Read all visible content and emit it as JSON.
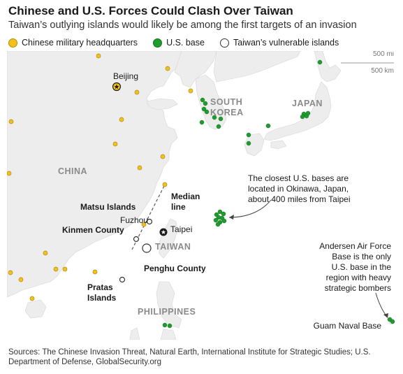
{
  "title": "Chinese and U.S. Forces Could Clash Over Taiwan",
  "subtitle": "Taiwan’s outlying islands would likely be among the first targets of an invasion",
  "legend": {
    "hq": "Chinese military headquarters",
    "base": "U.S. base",
    "island": "Taiwan’s vulnerable islands"
  },
  "scale": {
    "mi": "500 mi",
    "km": "500 km"
  },
  "map_labels": {
    "beijing": "Beijing",
    "south_korea_1": "SOUTH",
    "south_korea_2": "KOREA",
    "japan": "JAPAN",
    "china": "CHINA",
    "median_1": "Median",
    "median_2": "line",
    "matsu": "Matsu Islands",
    "fuzhou": "Fuzhou",
    "kinmen": "Kinmen County",
    "taipei": "Taipei",
    "taiwan": "TAIWAN",
    "penghu": "Penghu County",
    "pratas_1": "Pratas",
    "pratas_2": "Islands",
    "philippines": "PHILIPPINES",
    "okinawa_1": "The closest U.S. bases are",
    "okinawa_2": "located in Okinawa, Japan,",
    "okinawa_3": "about 400 miles from Taipei",
    "andersen_1": "Andersen Air Force",
    "andersen_2": "Base is the only",
    "andersen_3": "U.S. base in the",
    "andersen_4": "region with heavy",
    "andersen_5": "strategic bombers",
    "guam": "Guam Naval Base"
  },
  "sources": "Sources: The Chinese Invasion Threat, Natural Earth, International Institute for Strategic Studies; U.S. Department of Defense, GlobalSecurity.org",
  "colors": {
    "land": "#ededed",
    "sea": "#ffffff",
    "hq": "#f2c21b",
    "base": "#1f9c2e",
    "label": "#8a8a8a"
  }
}
